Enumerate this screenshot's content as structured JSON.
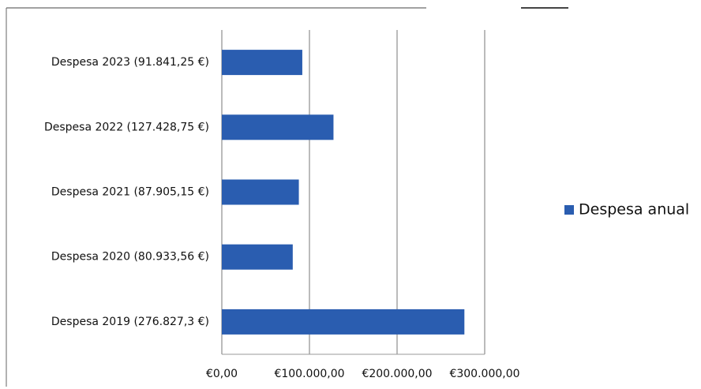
{
  "chart_data": {
    "type": "hbar",
    "categories": [
      "Despesa 2023 (91.841,25 €)",
      "Despesa 2022 (127.428,75 €)",
      "Despesa 2021 (87.905,15 €)",
      "Despesa 2020 (80.933,56 €)",
      "Despesa 2019 (276.827,3 €)"
    ],
    "series": [
      {
        "name": "Despesa anual",
        "color": "#2a5db0",
        "values": [
          91841.25,
          127428.75,
          87905.15,
          80933.56,
          276827.3
        ]
      }
    ],
    "xlim": [
      0,
      300000
    ],
    "xticks": [
      {
        "value": 0,
        "label": "€0,00"
      },
      {
        "value": 100000,
        "label": "€100.000,00"
      },
      {
        "value": 200000,
        "label": "€200.000,00"
      },
      {
        "value": 300000,
        "label": "€300.000,00"
      }
    ],
    "grid": true,
    "legend": "right"
  }
}
